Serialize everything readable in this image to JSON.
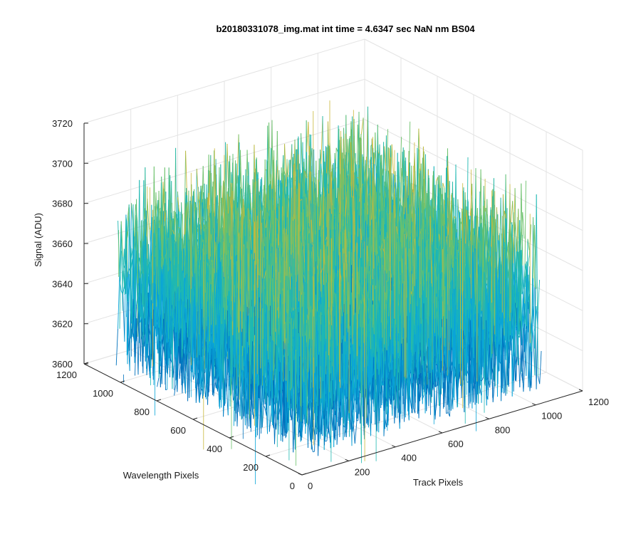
{
  "chart_data": {
    "type": "surface",
    "title": "b20180331078_img.mat int time = 4.6347 sec  NaN nm BS04",
    "xlabel": "Track Pixels",
    "ylabel": "Wavelength Pixels",
    "zlabel": "Signal (ADU)",
    "xlim": [
      0,
      1200
    ],
    "ylim": [
      0,
      1200
    ],
    "zlim": [
      3600,
      3720
    ],
    "xticks": [
      0,
      200,
      400,
      600,
      800,
      1000,
      1200
    ],
    "yticks": [
      0,
      200,
      400,
      600,
      800,
      1000,
      1200
    ],
    "zticks": [
      3600,
      3620,
      3640,
      3660,
      3680,
      3700,
      3720
    ],
    "data_extent": {
      "x": [
        1,
        1024
      ],
      "y": [
        1,
        1024
      ]
    },
    "z_mean": 3648,
    "z_noise_range": [
      3615,
      3705
    ],
    "grid": true,
    "colormap": [
      "#0072BD",
      "#0AA5D8",
      "#1FB8B2",
      "#6CC16B",
      "#C9B83A"
    ]
  }
}
